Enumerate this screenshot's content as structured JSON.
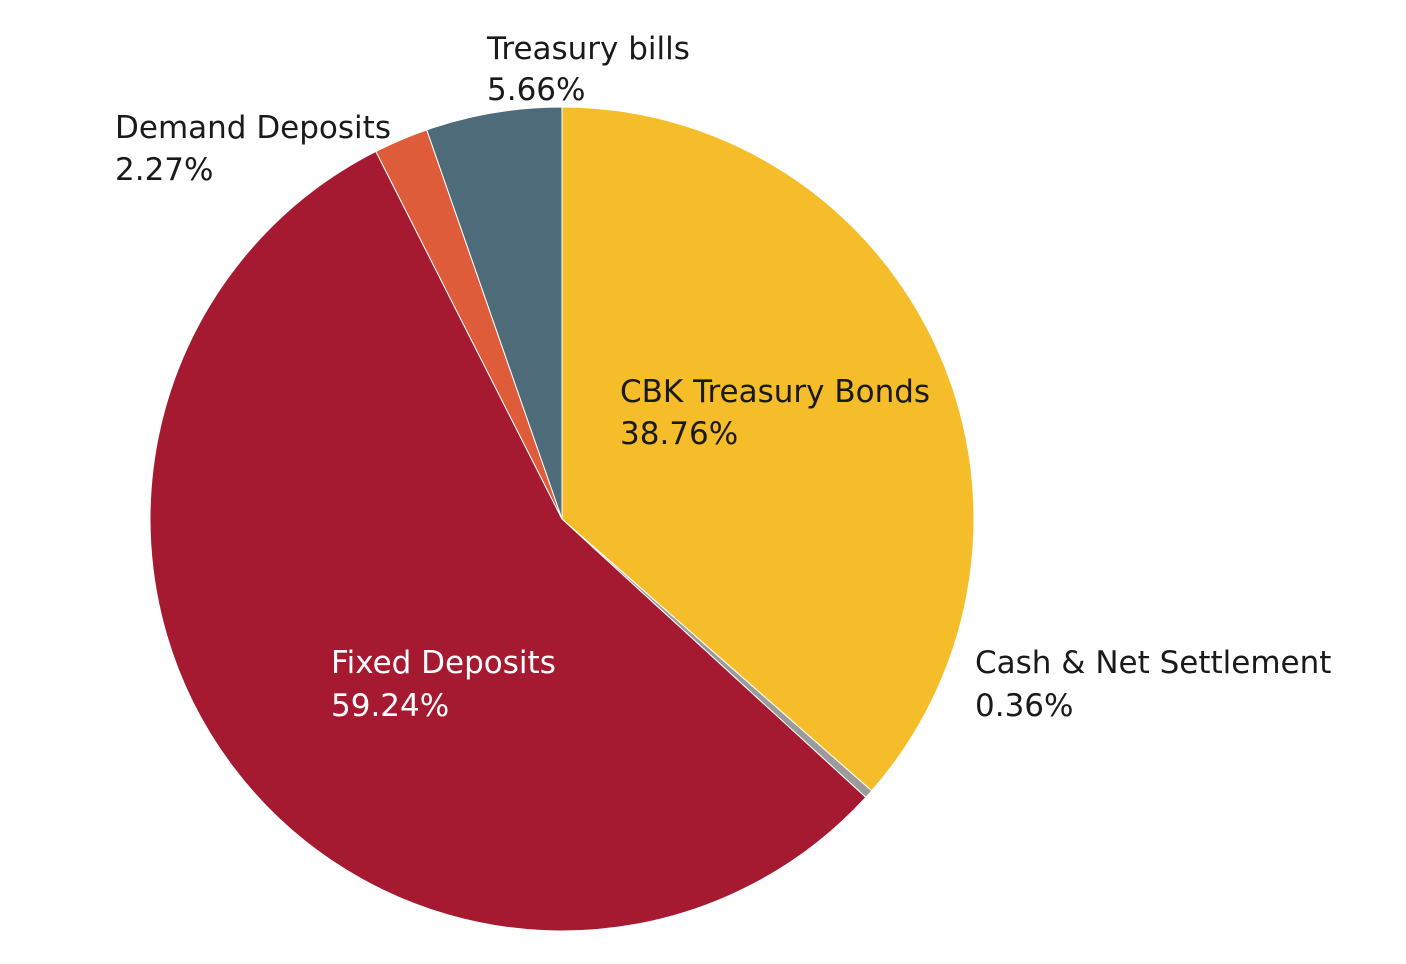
{
  "chart_data": {
    "type": "pie",
    "start": "12 o'clock",
    "direction": "clockwise",
    "slices": [
      {
        "label": "CBK Treasury Bonds",
        "value": 38.76,
        "value_label": "38.76%",
        "color": "#F6BD2A",
        "label_color": "#1a1a1a"
      },
      {
        "label": "Cash & Net Settlement",
        "value": 0.36,
        "value_label": "0.36%",
        "color": "#9B9B9B",
        "label_color": "#1a1a1a"
      },
      {
        "label": "Fixed Deposits",
        "value": 59.24,
        "value_label": "59.24%",
        "color": "#A61A31",
        "label_color": "#ffffff"
      },
      {
        "label": "Demand Deposits",
        "value": 2.27,
        "value_label": "2.27%",
        "color": "#DF5C3A",
        "label_color": "#1a1a1a"
      },
      {
        "label": "Treasury bills",
        "value": 5.66,
        "value_label": "5.66%",
        "color": "#4E6B7A",
        "label_color": "#1a1a1a"
      }
    ]
  }
}
